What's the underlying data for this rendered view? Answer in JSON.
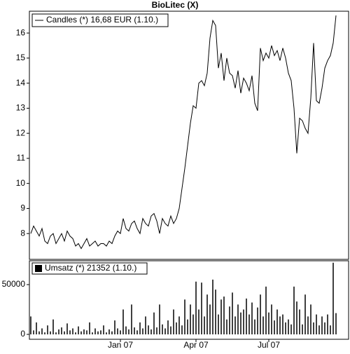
{
  "chart_data": [
    {
      "type": "line",
      "title": "BioLitec (X)",
      "series": [
        {
          "name": "Candles (*) 16,68 EUR (1.10.)",
          "color": "#000000",
          "values": [
            8.0,
            8.3,
            8.1,
            7.9,
            8.2,
            7.7,
            7.6,
            7.9,
            8.0,
            7.6,
            7.8,
            8.0,
            7.7,
            8.1,
            7.9,
            7.8,
            7.5,
            7.6,
            7.4,
            7.6,
            7.8,
            7.5,
            7.6,
            7.7,
            7.5,
            7.6,
            7.6,
            7.5,
            7.7,
            7.6,
            7.9,
            8.1,
            8.0,
            8.6,
            8.2,
            8.1,
            8.4,
            8.5,
            8.2,
            8.0,
            8.6,
            8.4,
            8.3,
            8.7,
            8.8,
            8.5,
            8.0,
            8.6,
            8.4,
            8.3,
            8.7,
            8.4,
            8.6,
            9.0,
            9.8,
            10.6,
            11.5,
            12.4,
            13.1,
            13.0,
            14.0,
            14.1,
            13.9,
            14.4,
            15.8,
            16.5,
            16.3,
            14.6,
            15.2,
            14.1,
            15.0,
            14.4,
            14.3,
            13.8,
            14.5,
            13.6,
            14.2,
            14.0,
            13.7,
            14.3,
            13.2,
            12.9,
            15.4,
            14.9,
            15.2,
            15.0,
            15.5,
            15.1,
            15.3,
            14.9,
            15.4,
            15.0,
            14.4,
            14.1,
            13.0,
            11.2,
            12.6,
            12.5,
            12.2,
            12.0,
            13.4,
            15.6,
            13.3,
            13.2,
            13.8,
            14.6,
            14.9,
            15.1,
            15.6,
            16.7
          ]
        }
      ],
      "ylim": [
        6.97,
        16.87
      ],
      "yticks": [
        8,
        9,
        10,
        11,
        12,
        13,
        14,
        15,
        16
      ]
    },
    {
      "type": "bar",
      "categories": [
        null,
        null,
        null,
        null,
        null,
        null,
        null,
        null,
        null,
        null,
        null,
        null,
        null,
        null,
        null,
        null,
        null,
        null,
        null,
        null,
        null,
        null,
        null,
        null,
        null,
        null,
        null,
        null,
        null,
        null,
        null,
        null,
        "Jan 07",
        null,
        null,
        null,
        null,
        null,
        null,
        null,
        null,
        null,
        null,
        null,
        null,
        null,
        null,
        null,
        null,
        null,
        null,
        null,
        null,
        null,
        null,
        null,
        null,
        null,
        null,
        "Apr 07",
        null,
        null,
        null,
        null,
        null,
        null,
        null,
        null,
        null,
        null,
        null,
        null,
        null,
        null,
        null,
        null,
        null,
        null,
        null,
        null,
        null,
        null,
        null,
        null,
        null,
        "Jul 07",
        null,
        null,
        null,
        null,
        null,
        null,
        null,
        null,
        null,
        null,
        null,
        null,
        null,
        null,
        null,
        null,
        null,
        null,
        null,
        null,
        null,
        null,
        null,
        null
      ],
      "series": [
        {
          "name": "Umsatz (*) 21352 (1.10.)",
          "color": "#000000",
          "values": [
            18000,
            4000,
            12000,
            3000,
            6000,
            2000,
            9000,
            3000,
            15000,
            2000,
            5000,
            7000,
            3000,
            11000,
            4000,
            6000,
            2000,
            8000,
            3000,
            5000,
            4000,
            12000,
            2000,
            6000,
            3000,
            4000,
            9000,
            2000,
            5000,
            3000,
            14000,
            6000,
            4000,
            25000,
            8000,
            5000,
            30000,
            7000,
            4000,
            12000,
            6000,
            18000,
            9000,
            5000,
            22000,
            7000,
            30000,
            10000,
            6000,
            14000,
            8000,
            25000,
            12000,
            18000,
            9000,
            35000,
            15000,
            30000,
            20000,
            53000,
            25000,
            52000,
            18000,
            40000,
            30000,
            55000,
            45000,
            20000,
            35000,
            38000,
            15000,
            28000,
            42000,
            18000,
            30000,
            22000,
            25000,
            36000,
            20000,
            32000,
            15000,
            27000,
            40000,
            18000,
            48000,
            22000,
            30000,
            14000,
            25000,
            18000,
            20000,
            12000,
            15000,
            10000,
            48000,
            33000,
            25000,
            10000,
            40000,
            18000,
            30000,
            12000,
            20000,
            9000,
            18000,
            12000,
            20000,
            9000,
            72000,
            21352
          ]
        }
      ],
      "ylim": [
        -4930,
        73940
      ],
      "yticks": [
        0,
        50000
      ]
    }
  ]
}
